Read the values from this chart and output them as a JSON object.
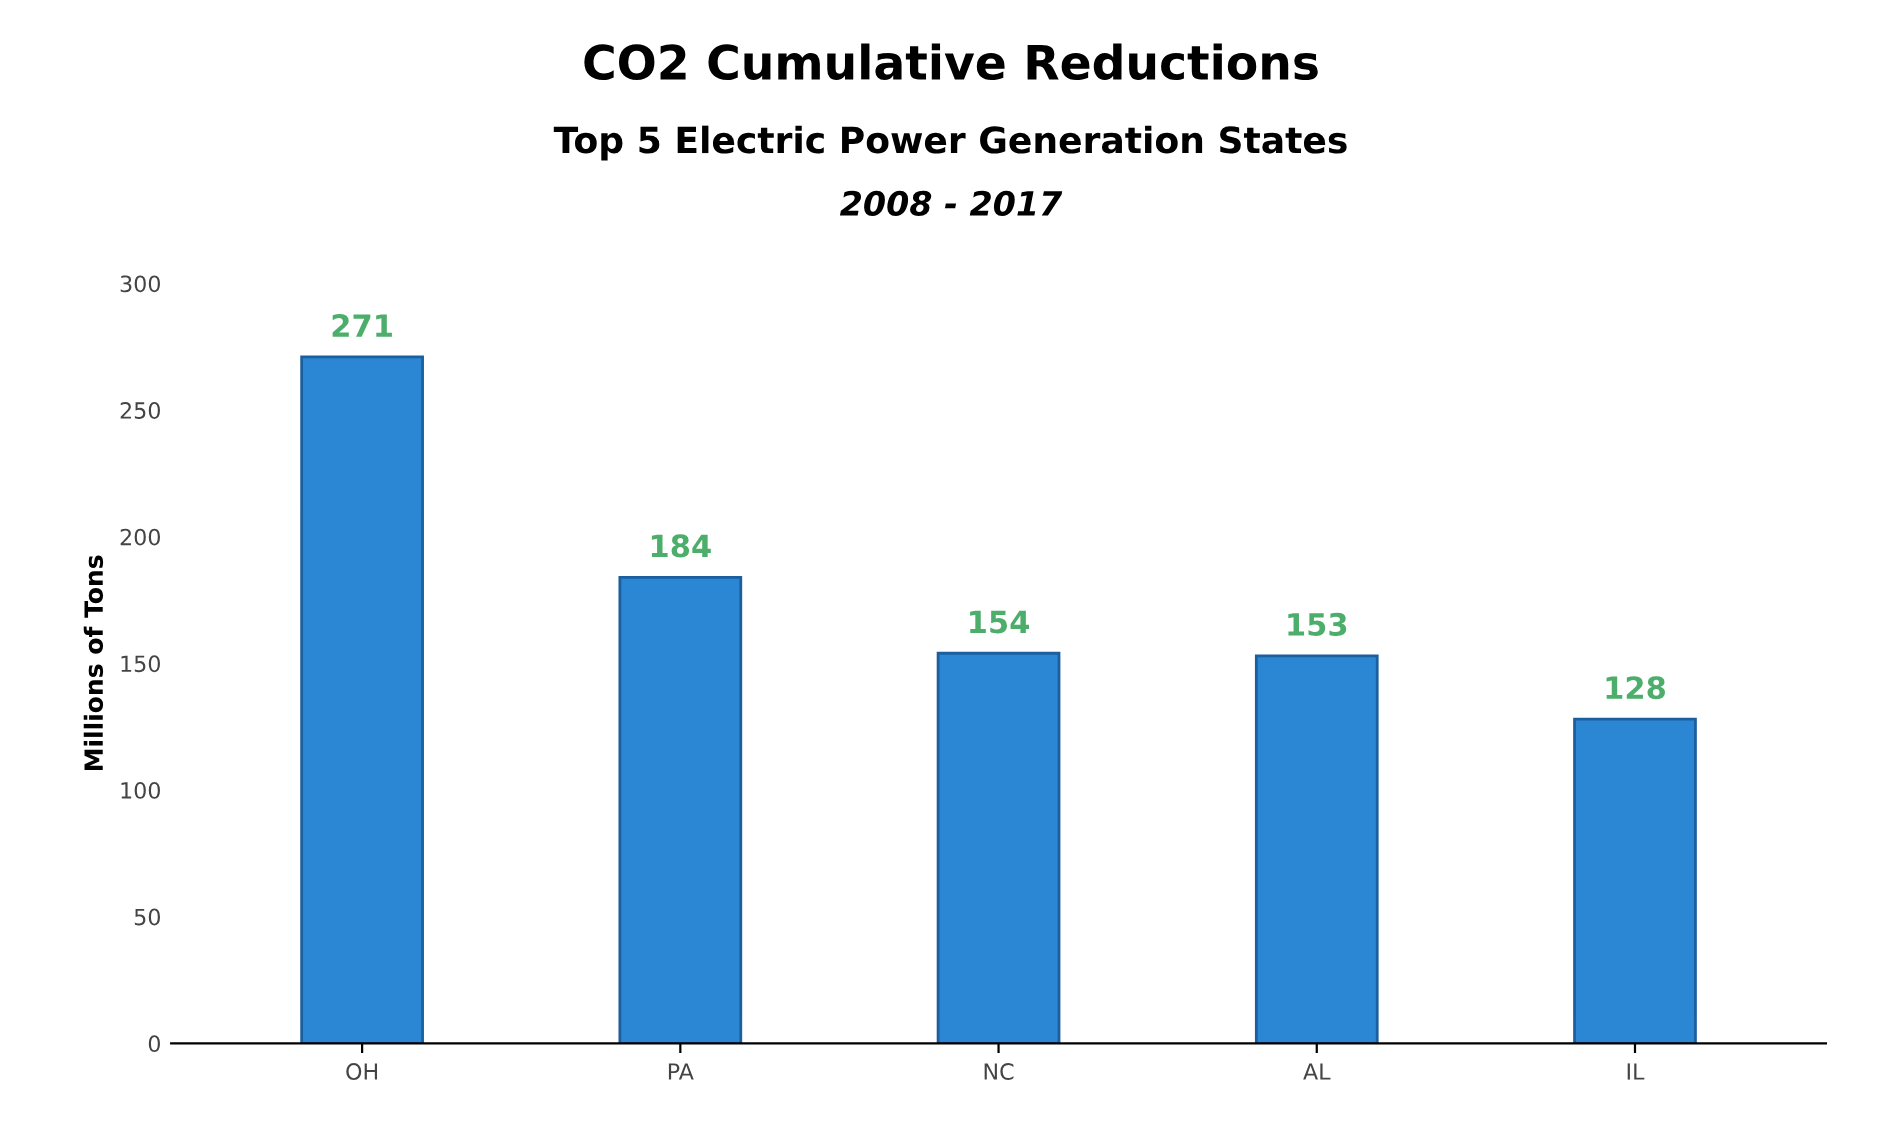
{
  "chart_data": {
    "type": "bar",
    "title": "CO2 Cumulative Reductions",
    "subtitle": "Top 5 Electric Power Generation States",
    "annotations": [
      "2008 - 2017"
    ],
    "ylabel": "Millions of Tons",
    "categories": [
      "OH",
      "PA",
      "NC",
      "AL",
      "IL"
    ],
    "values": [
      271,
      184,
      154,
      153,
      128
    ],
    "color": "#2b86d4",
    "ylim": [
      0,
      300
    ],
    "yticks": [
      0,
      50,
      100,
      150,
      200,
      250,
      300
    ],
    "grid": false,
    "data_labels": true
  }
}
